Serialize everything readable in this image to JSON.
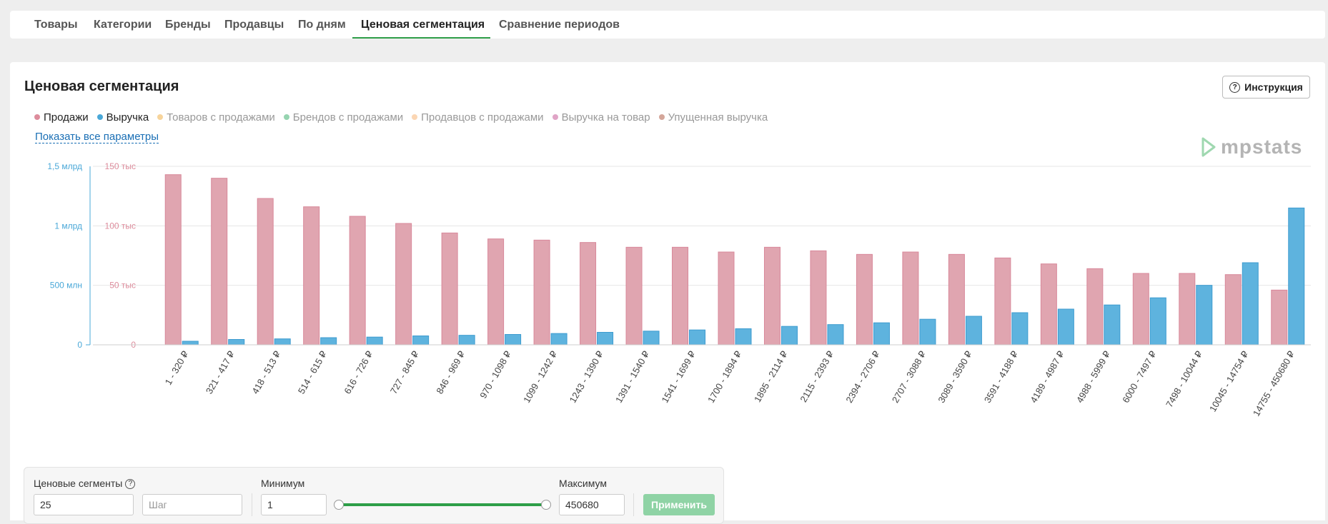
{
  "tabs": [
    {
      "label": "Товары",
      "active": false
    },
    {
      "label": "Категории",
      "active": false
    },
    {
      "label": "Бренды",
      "active": false
    },
    {
      "label": "Продавцы",
      "active": false
    },
    {
      "label": "По дням",
      "active": false
    },
    {
      "label": "Ценовая сегментация",
      "active": true
    },
    {
      "label": "Сравнение периодов",
      "active": false
    }
  ],
  "page": {
    "title": "Ценовая сегментация",
    "help_label": "Инструкция",
    "show_all_label": "Показать все параметры",
    "logo_text": "mpstats"
  },
  "legend": [
    {
      "label": "Продажи",
      "color": "#dd8c9c",
      "active": true
    },
    {
      "label": "Выручка",
      "color": "#4aa8d8",
      "active": true
    },
    {
      "label": "Товаров с продажами",
      "color": "#f7d49b",
      "active": false
    },
    {
      "label": "Брендов с продажами",
      "color": "#96d4b0",
      "active": false
    },
    {
      "label": "Продавцов с продажами",
      "color": "#fbd6b3",
      "active": false
    },
    {
      "label": "Выручка на товар",
      "color": "#e0a4c6",
      "active": false
    },
    {
      "label": "Упущенная выручка",
      "color": "#d4a69a",
      "active": false
    }
  ],
  "chart_data": {
    "type": "bar",
    "categories": [
      "1 - 320 ₽",
      "321 - 417 ₽",
      "418 - 513 ₽",
      "514 - 615 ₽",
      "616 - 726 ₽",
      "727 - 845 ₽",
      "846 - 969 ₽",
      "970 - 1098 ₽",
      "1099 - 1242 ₽",
      "1243 - 1390 ₽",
      "1391 - 1540 ₽",
      "1541 - 1699 ₽",
      "1700 - 1894 ₽",
      "1895 - 2114 ₽",
      "2115 - 2393 ₽",
      "2394 - 2706 ₽",
      "2707 - 3088 ₽",
      "3089 - 3590 ₽",
      "3591 - 4188 ₽",
      "4189 - 4987 ₽",
      "4988 - 5999 ₽",
      "6000 - 7497 ₽",
      "7498 - 10044 ₽",
      "10045 - 14754 ₽",
      "14755 - 450680 ₽"
    ],
    "series": [
      {
        "name": "Продажи",
        "axis": "right",
        "color": "#dd8c9c",
        "values": [
          143000,
          140000,
          123000,
          116000,
          108000,
          102000,
          94000,
          89000,
          88000,
          86000,
          82000,
          82000,
          78000,
          82000,
          79000,
          76000,
          78000,
          76000,
          73000,
          68000,
          64000,
          60000,
          60000,
          59000,
          46000
        ]
      },
      {
        "name": "Выручка",
        "axis": "left",
        "color": "#4aa8d8",
        "values": [
          30000000,
          45000000,
          50000000,
          60000000,
          65000000,
          75000000,
          80000000,
          87000000,
          95000000,
          105000000,
          115000000,
          125000000,
          135000000,
          155000000,
          170000000,
          185000000,
          215000000,
          240000000,
          270000000,
          300000000,
          335000000,
          395000000,
          500000000,
          690000000,
          1150000000
        ]
      }
    ],
    "y_left": {
      "range": [
        0,
        1500000000
      ],
      "ticks": [
        0,
        500000000,
        1000000000,
        1500000000
      ],
      "tick_labels": [
        "0",
        "500 млн",
        "1 млрд",
        "1,5 млрд"
      ],
      "color": "#4aa8d8"
    },
    "y_right": {
      "range": [
        0,
        150000
      ],
      "ticks": [
        0,
        50000,
        100000,
        150000
      ],
      "tick_labels": [
        "0",
        "50 тыс",
        "100 тыс",
        "150 тыс"
      ],
      "color": "#dd8c9c"
    },
    "grid": true
  },
  "controls": {
    "segments_label": "Ценовые сегменты",
    "segments_value": "25",
    "step_placeholder": "Шаг",
    "min_label": "Минимум",
    "min_value": "1",
    "max_label": "Максимум",
    "max_value": "450680",
    "apply_label": "Применить"
  }
}
